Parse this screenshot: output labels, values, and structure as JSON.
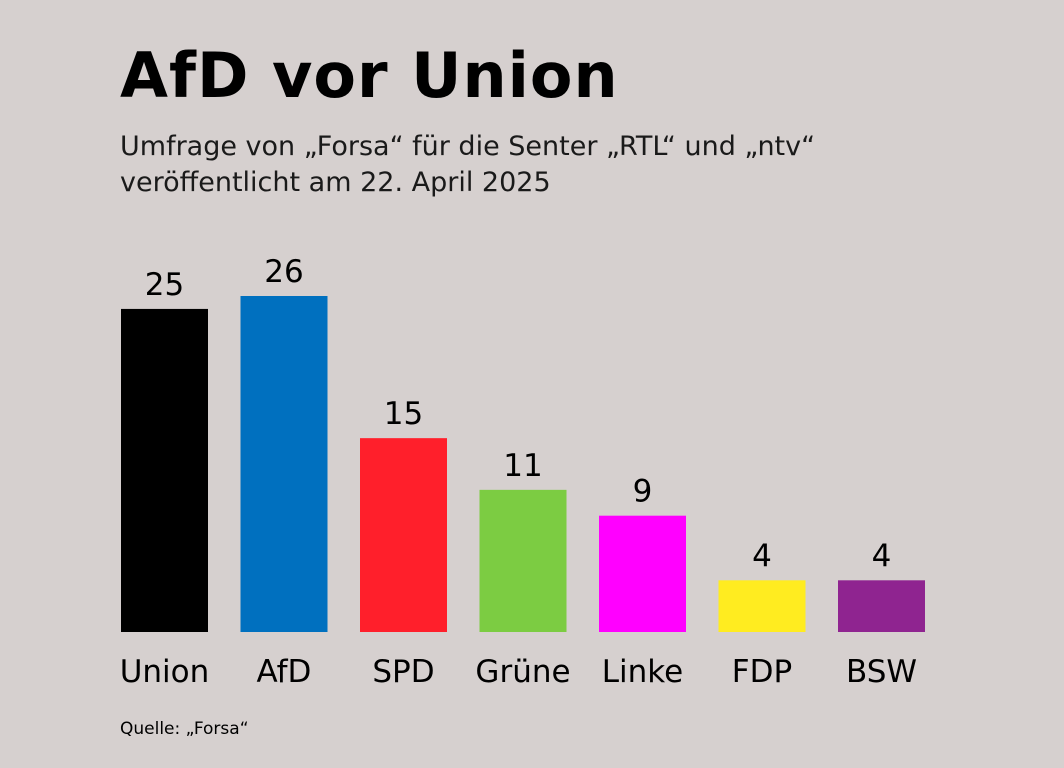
{
  "title": "AfD vor Union",
  "subtitle": {
    "line1": "Umfrage von „Forsa“ für die Senter „RTL“ und „ntv“",
    "line2": "veröffentlicht am 22. April 2025"
  },
  "source": "Quelle: „Forsa“",
  "chart_data": {
    "type": "bar",
    "categories": [
      "Union",
      "AfD",
      "SPD",
      "Grüne",
      "Linke",
      "FDP",
      "BSW"
    ],
    "values": [
      25,
      26,
      15,
      11,
      9,
      4,
      4
    ],
    "colors": [
      "#000000",
      "#0070bf",
      "#ff1f2b",
      "#7ccc42",
      "#ff00ff",
      "#ffec20",
      "#8f2490"
    ],
    "ylim": [
      0,
      26
    ],
    "grid": false,
    "legend": "none",
    "data_labels": true
  }
}
